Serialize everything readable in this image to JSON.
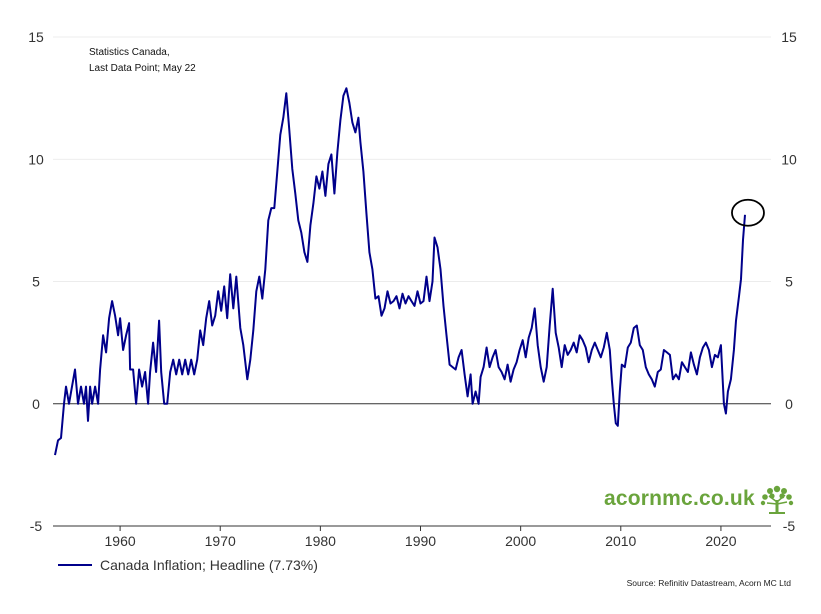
{
  "chart_data": {
    "type": "line",
    "title": "",
    "annotation_lines": [
      "Statistics Canada,",
      "Last Data Point; May 22"
    ],
    "ylim": [
      -5,
      15
    ],
    "y_ticks": [
      15,
      10,
      5,
      0,
      -5
    ],
    "y_tick_labels": [
      "15",
      "10",
      "5",
      "0",
      "-5"
    ],
    "xlim": [
      1953.3,
      2025.0
    ],
    "x_ticks": [
      1960,
      1970,
      1980,
      1990,
      2000,
      2010,
      2020
    ],
    "x_tick_labels": [
      "1960",
      "1970",
      "1980",
      "1990",
      "2000",
      "2010",
      "2020"
    ],
    "grid": "horizontal",
    "legend_position": "bottom-left",
    "highlight_circle": {
      "x": 2022.4,
      "y": 7.73
    },
    "series": [
      {
        "name": "Canada Inflation; Headline (7.73%)",
        "color": "#00008b",
        "points": [
          [
            1953.5,
            -2.1
          ],
          [
            1953.8,
            -1.5
          ],
          [
            1954.1,
            -1.4
          ],
          [
            1954.4,
            0.0
          ],
          [
            1954.6,
            0.7
          ],
          [
            1954.9,
            0.0
          ],
          [
            1955.2,
            0.7
          ],
          [
            1955.5,
            1.4
          ],
          [
            1955.8,
            0.0
          ],
          [
            1956.1,
            0.7
          ],
          [
            1956.4,
            0.0
          ],
          [
            1956.6,
            0.7
          ],
          [
            1956.8,
            -0.7
          ],
          [
            1957.0,
            0.7
          ],
          [
            1957.2,
            0.0
          ],
          [
            1957.5,
            0.7
          ],
          [
            1957.8,
            0.0
          ],
          [
            1958.0,
            1.4
          ],
          [
            1958.3,
            2.8
          ],
          [
            1958.6,
            2.1
          ],
          [
            1958.9,
            3.5
          ],
          [
            1959.2,
            4.2
          ],
          [
            1959.5,
            3.6
          ],
          [
            1959.8,
            2.8
          ],
          [
            1960.0,
            3.5
          ],
          [
            1960.3,
            2.2
          ],
          [
            1960.6,
            2.8
          ],
          [
            1960.9,
            3.3
          ],
          [
            1961.0,
            1.4
          ],
          [
            1961.3,
            1.4
          ],
          [
            1961.6,
            0.0
          ],
          [
            1961.9,
            1.4
          ],
          [
            1962.2,
            0.7
          ],
          [
            1962.5,
            1.3
          ],
          [
            1962.8,
            0.0
          ],
          [
            1963.0,
            1.3
          ],
          [
            1963.3,
            2.5
          ],
          [
            1963.6,
            1.3
          ],
          [
            1963.9,
            3.4
          ],
          [
            1964.1,
            1.3
          ],
          [
            1964.4,
            0.0
          ],
          [
            1964.7,
            0.0
          ],
          [
            1965.0,
            1.3
          ],
          [
            1965.3,
            1.8
          ],
          [
            1965.6,
            1.2
          ],
          [
            1965.9,
            1.8
          ],
          [
            1966.2,
            1.2
          ],
          [
            1966.5,
            1.8
          ],
          [
            1966.8,
            1.2
          ],
          [
            1967.1,
            1.8
          ],
          [
            1967.4,
            1.2
          ],
          [
            1967.7,
            1.8
          ],
          [
            1968.0,
            3.0
          ],
          [
            1968.3,
            2.4
          ],
          [
            1968.6,
            3.5
          ],
          [
            1968.9,
            4.2
          ],
          [
            1969.2,
            3.2
          ],
          [
            1969.5,
            3.6
          ],
          [
            1969.8,
            4.6
          ],
          [
            1970.1,
            3.8
          ],
          [
            1970.4,
            4.8
          ],
          [
            1970.7,
            3.5
          ],
          [
            1971.0,
            5.3
          ],
          [
            1971.3,
            3.9
          ],
          [
            1971.6,
            5.2
          ],
          [
            1972.0,
            3.1
          ],
          [
            1972.3,
            2.4
          ],
          [
            1972.7,
            1.0
          ],
          [
            1973.0,
            1.8
          ],
          [
            1973.3,
            3.0
          ],
          [
            1973.6,
            4.6
          ],
          [
            1973.9,
            5.2
          ],
          [
            1974.2,
            4.3
          ],
          [
            1974.5,
            5.5
          ],
          [
            1974.8,
            7.5
          ],
          [
            1975.1,
            8.0
          ],
          [
            1975.4,
            8.0
          ],
          [
            1975.7,
            9.5
          ],
          [
            1976.0,
            11.0
          ],
          [
            1976.3,
            11.7
          ],
          [
            1976.6,
            12.7
          ],
          [
            1976.9,
            11.2
          ],
          [
            1977.2,
            9.6
          ],
          [
            1977.5,
            8.6
          ],
          [
            1977.8,
            7.5
          ],
          [
            1978.1,
            7.0
          ],
          [
            1978.4,
            6.2
          ],
          [
            1978.7,
            5.8
          ],
          [
            1979.0,
            7.3
          ],
          [
            1979.3,
            8.2
          ],
          [
            1979.6,
            9.3
          ],
          [
            1979.9,
            8.8
          ],
          [
            1980.2,
            9.5
          ],
          [
            1980.5,
            8.5
          ],
          [
            1980.8,
            9.8
          ],
          [
            1981.1,
            10.2
          ],
          [
            1981.4,
            8.6
          ],
          [
            1981.7,
            10.3
          ],
          [
            1982.0,
            11.6
          ],
          [
            1982.3,
            12.6
          ],
          [
            1982.6,
            12.9
          ],
          [
            1982.9,
            12.3
          ],
          [
            1983.2,
            11.5
          ],
          [
            1983.5,
            11.1
          ],
          [
            1983.8,
            11.7
          ],
          [
            1984.0,
            10.7
          ],
          [
            1984.3,
            9.5
          ],
          [
            1984.6,
            7.8
          ],
          [
            1984.9,
            6.2
          ],
          [
            1985.2,
            5.5
          ],
          [
            1985.5,
            4.3
          ],
          [
            1985.8,
            4.4
          ],
          [
            1986.1,
            3.6
          ],
          [
            1986.4,
            3.9
          ],
          [
            1986.7,
            4.6
          ],
          [
            1987.0,
            4.1
          ],
          [
            1987.3,
            4.2
          ],
          [
            1987.6,
            4.4
          ],
          [
            1987.9,
            3.9
          ],
          [
            1988.2,
            4.5
          ],
          [
            1988.5,
            4.1
          ],
          [
            1988.8,
            4.4
          ],
          [
            1989.1,
            4.2
          ],
          [
            1989.4,
            4.0
          ],
          [
            1989.7,
            4.6
          ],
          [
            1990.0,
            4.1
          ],
          [
            1990.3,
            4.2
          ],
          [
            1990.6,
            5.2
          ],
          [
            1990.9,
            4.2
          ],
          [
            1991.2,
            5.0
          ],
          [
            1991.4,
            6.8
          ],
          [
            1991.7,
            6.4
          ],
          [
            1992.0,
            5.5
          ],
          [
            1992.3,
            4.0
          ],
          [
            1992.6,
            2.8
          ],
          [
            1992.9,
            1.6
          ],
          [
            1993.2,
            1.5
          ],
          [
            1993.5,
            1.4
          ],
          [
            1993.8,
            1.9
          ],
          [
            1994.1,
            2.2
          ],
          [
            1994.4,
            1.2
          ],
          [
            1994.7,
            0.3
          ],
          [
            1995.0,
            1.2
          ],
          [
            1995.2,
            0.0
          ],
          [
            1995.5,
            0.5
          ],
          [
            1995.8,
            0.0
          ],
          [
            1996.0,
            1.1
          ],
          [
            1996.3,
            1.5
          ],
          [
            1996.6,
            2.3
          ],
          [
            1996.9,
            1.5
          ],
          [
            1997.2,
            1.9
          ],
          [
            1997.5,
            2.2
          ],
          [
            1997.8,
            1.5
          ],
          [
            1998.1,
            1.3
          ],
          [
            1998.4,
            1.0
          ],
          [
            1998.7,
            1.6
          ],
          [
            1999.0,
            0.9
          ],
          [
            1999.3,
            1.4
          ],
          [
            1999.6,
            1.7
          ],
          [
            1999.9,
            2.2
          ],
          [
            2000.2,
            2.6
          ],
          [
            2000.5,
            1.9
          ],
          [
            2000.8,
            2.7
          ],
          [
            2001.1,
            3.1
          ],
          [
            2001.4,
            3.9
          ],
          [
            2001.7,
            2.4
          ],
          [
            2002.0,
            1.5
          ],
          [
            2002.3,
            0.9
          ],
          [
            2002.6,
            1.5
          ],
          [
            2002.9,
            3.2
          ],
          [
            2003.2,
            4.7
          ],
          [
            2003.5,
            2.9
          ],
          [
            2003.8,
            2.3
          ],
          [
            2004.1,
            1.5
          ],
          [
            2004.4,
            2.4
          ],
          [
            2004.7,
            2.0
          ],
          [
            2005.0,
            2.2
          ],
          [
            2005.3,
            2.5
          ],
          [
            2005.6,
            2.1
          ],
          [
            2005.9,
            2.8
          ],
          [
            2006.2,
            2.6
          ],
          [
            2006.5,
            2.3
          ],
          [
            2006.8,
            1.7
          ],
          [
            2007.1,
            2.2
          ],
          [
            2007.4,
            2.5
          ],
          [
            2007.7,
            2.2
          ],
          [
            2008.0,
            1.9
          ],
          [
            2008.3,
            2.3
          ],
          [
            2008.6,
            2.9
          ],
          [
            2008.9,
            2.2
          ],
          [
            2009.1,
            1.0
          ],
          [
            2009.3,
            0.0
          ],
          [
            2009.5,
            -0.8
          ],
          [
            2009.7,
            -0.9
          ],
          [
            2009.9,
            0.5
          ],
          [
            2010.1,
            1.6
          ],
          [
            2010.4,
            1.5
          ],
          [
            2010.7,
            2.3
          ],
          [
            2011.0,
            2.5
          ],
          [
            2011.3,
            3.1
          ],
          [
            2011.6,
            3.2
          ],
          [
            2011.9,
            2.4
          ],
          [
            2012.2,
            2.2
          ],
          [
            2012.5,
            1.5
          ],
          [
            2012.8,
            1.2
          ],
          [
            2013.1,
            1.0
          ],
          [
            2013.4,
            0.7
          ],
          [
            2013.7,
            1.3
          ],
          [
            2014.0,
            1.4
          ],
          [
            2014.3,
            2.2
          ],
          [
            2014.6,
            2.1
          ],
          [
            2014.9,
            2.0
          ],
          [
            2015.2,
            1.0
          ],
          [
            2015.5,
            1.2
          ],
          [
            2015.8,
            1.0
          ],
          [
            2016.1,
            1.7
          ],
          [
            2016.4,
            1.5
          ],
          [
            2016.7,
            1.3
          ],
          [
            2017.0,
            2.1
          ],
          [
            2017.3,
            1.6
          ],
          [
            2017.6,
            1.2
          ],
          [
            2017.9,
            1.9
          ],
          [
            2018.2,
            2.3
          ],
          [
            2018.5,
            2.5
          ],
          [
            2018.8,
            2.2
          ],
          [
            2019.1,
            1.5
          ],
          [
            2019.4,
            2.0
          ],
          [
            2019.7,
            1.9
          ],
          [
            2020.0,
            2.4
          ],
          [
            2020.3,
            0.0
          ],
          [
            2020.5,
            -0.4
          ],
          [
            2020.7,
            0.5
          ],
          [
            2021.0,
            1.0
          ],
          [
            2021.3,
            2.2
          ],
          [
            2021.5,
            3.4
          ],
          [
            2021.8,
            4.4
          ],
          [
            2022.0,
            5.1
          ],
          [
            2022.2,
            6.7
          ],
          [
            2022.4,
            7.73
          ]
        ]
      }
    ]
  },
  "branding": {
    "text": "acornmc.co.uk",
    "tree_icon": "tree-icon",
    "color": "#6aa43c"
  },
  "source_text": "Source: Refinitiv Datastream, Acorn MC Ltd"
}
